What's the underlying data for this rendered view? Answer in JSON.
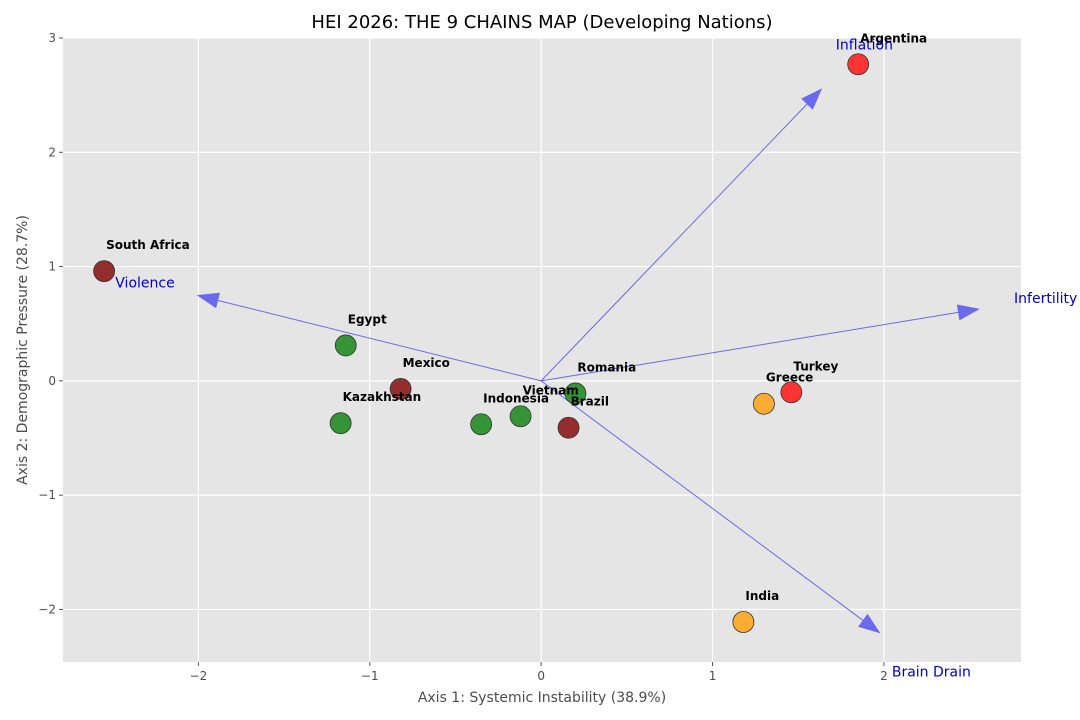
{
  "chart_data": {
    "type": "scatter",
    "title": "HEI 2026: THE 9 CHAINS MAP (Developing Nations)",
    "xlabel": "Axis 1: Systemic Instability (38.9%)",
    "ylabel": "Axis 2: Demographic Pressure (28.7%)",
    "xlim": [
      -2.79,
      2.8
    ],
    "ylim": [
      -2.46,
      3.0
    ],
    "xticks": [
      -2,
      -1,
      0,
      1,
      2
    ],
    "yticks": [
      -2,
      -1,
      0,
      1,
      2,
      3
    ],
    "xtick_labels": [
      "−2",
      "−1",
      "0",
      "1",
      "2"
    ],
    "ytick_labels": [
      "−2",
      "−1",
      "0",
      "1",
      "2",
      "3"
    ],
    "grid": true,
    "background": "#e5e5e5",
    "colors": {
      "dark-red": "#8b1a1a",
      "green": "#228b22",
      "red": "#ff2020",
      "orange": "#ffa51f",
      "vector": "#5555ee",
      "vector_label": "#0000cc"
    },
    "points": [
      {
        "label": "South Africa",
        "x": -2.55,
        "y": 0.96,
        "color": "dark-red"
      },
      {
        "label": "Egypt",
        "x": -1.14,
        "y": 0.31,
        "color": "green"
      },
      {
        "label": "Mexico",
        "x": -0.82,
        "y": -0.07,
        "color": "dark-red"
      },
      {
        "label": "Kazakhstan",
        "x": -1.17,
        "y": -0.37,
        "color": "green"
      },
      {
        "label": "Indonesia",
        "x": -0.35,
        "y": -0.38,
        "color": "green"
      },
      {
        "label": "Vietnam",
        "x": -0.12,
        "y": -0.31,
        "color": "green"
      },
      {
        "label": "Romania",
        "x": 0.2,
        "y": -0.11,
        "color": "green"
      },
      {
        "label": "Brazil",
        "x": 0.16,
        "y": -0.41,
        "color": "dark-red"
      },
      {
        "label": "Greece",
        "x": 1.3,
        "y": -0.2,
        "color": "orange"
      },
      {
        "label": "Turkey",
        "x": 1.46,
        "y": -0.1,
        "color": "red"
      },
      {
        "label": "India",
        "x": 1.18,
        "y": -2.11,
        "color": "orange"
      },
      {
        "label": "Argentina",
        "x": 1.85,
        "y": 2.77,
        "color": "red"
      }
    ],
    "vectors": [
      {
        "label": "Inflation",
        "x": 1.64,
        "y": 2.56
      },
      {
        "label": "Infertility",
        "x": 2.56,
        "y": 0.63
      },
      {
        "label": "Violence",
        "x": -2.01,
        "y": 0.75
      },
      {
        "label": "Brain Drain",
        "x": 1.98,
        "y": -2.21
      }
    ]
  }
}
